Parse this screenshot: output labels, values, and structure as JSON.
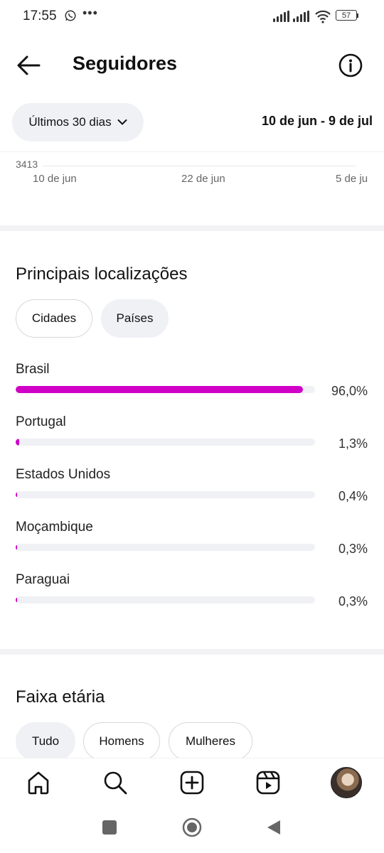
{
  "status_bar": {
    "time": "17:55",
    "battery": "57"
  },
  "header": {
    "title": "Seguidores"
  },
  "period": {
    "label": "Últimos 30 dias",
    "range": "10 de jun - 9 de jul"
  },
  "chart_data": {
    "type": "line",
    "value_label": "3413",
    "x_ticks": [
      "10 de jun",
      "22 de jun",
      "5 de ju"
    ]
  },
  "locations": {
    "title": "Principais localizações",
    "tabs": [
      {
        "label": "Cidades",
        "selected": false
      },
      {
        "label": "Países",
        "selected": true
      }
    ],
    "items": [
      {
        "name": "Brasil",
        "percent": "96,0%",
        "value": 96.0
      },
      {
        "name": "Portugal",
        "percent": "1,3%",
        "value": 1.3
      },
      {
        "name": "Estados Unidos",
        "percent": "0,4%",
        "value": 0.4
      },
      {
        "name": "Moçambique",
        "percent": "0,3%",
        "value": 0.3
      },
      {
        "name": "Paraguai",
        "percent": "0,3%",
        "value": 0.3
      }
    ],
    "bar_color": "#d000c7"
  },
  "age": {
    "title": "Faixa etária",
    "tabs": [
      {
        "label": "Tudo",
        "selected": true
      },
      {
        "label": "Homens",
        "selected": false
      },
      {
        "label": "Mulheres",
        "selected": false
      }
    ]
  },
  "bottom_nav": [
    "home-icon",
    "search-icon",
    "create-icon",
    "reels-icon",
    "profile-avatar"
  ]
}
